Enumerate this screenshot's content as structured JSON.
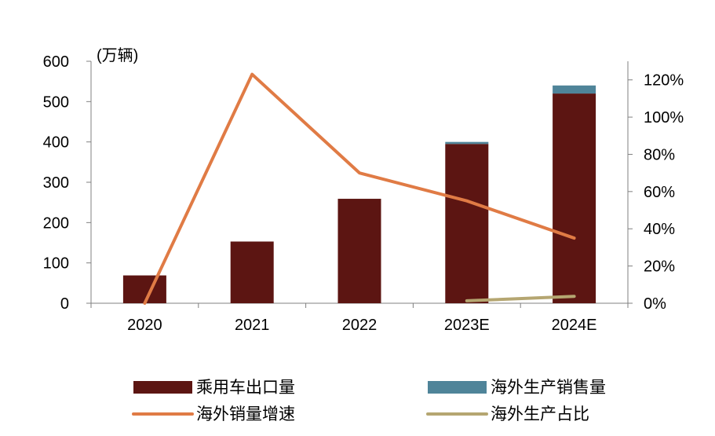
{
  "chart_data": {
    "type": "bar",
    "categories": [
      "2020",
      "2021",
      "2022",
      "2023E",
      "2024E"
    ],
    "series": [
      {
        "name": "乘用车出口量",
        "kind": "bar",
        "axis": "left",
        "stack": "main",
        "color": "#5c1512",
        "values": [
          69,
          153,
          259,
          395,
          520
        ]
      },
      {
        "name": "海外生产销售量",
        "kind": "bar",
        "axis": "left",
        "stack": "main",
        "color": "#4f8499",
        "values": [
          null,
          null,
          null,
          5,
          20
        ]
      },
      {
        "name": "海外销量增速",
        "kind": "line",
        "axis": "right",
        "color": "#e07b45",
        "values": [
          0,
          1.23,
          0.7,
          0.55,
          0.35
        ]
      },
      {
        "name": "海外生产占比",
        "kind": "line",
        "axis": "right",
        "color": "#b5a671",
        "values": [
          null,
          null,
          null,
          0.013,
          0.037
        ]
      }
    ],
    "y_left": {
      "label": "(万辆)",
      "min": 0,
      "max": 600,
      "ticks": [
        0,
        100,
        200,
        300,
        400,
        500,
        600
      ]
    },
    "y_right": {
      "min": 0,
      "max": 1.3,
      "ticks": [
        0,
        0.2,
        0.4,
        0.6,
        0.8,
        1.0,
        1.2
      ],
      "tick_labels": [
        "0%",
        "20%",
        "40%",
        "60%",
        "80%",
        "100%",
        "120%"
      ]
    },
    "legend": {
      "position": "bottom",
      "items": [
        {
          "name": "乘用车出口量",
          "swatch": "bar",
          "color": "#5c1512"
        },
        {
          "name": "海外生产销售量",
          "swatch": "bar",
          "color": "#4f8499"
        },
        {
          "name": "海外销量增速",
          "swatch": "line",
          "color": "#e07b45"
        },
        {
          "name": "海外生产占比",
          "swatch": "line",
          "color": "#b5a671"
        }
      ]
    },
    "grid": false
  }
}
